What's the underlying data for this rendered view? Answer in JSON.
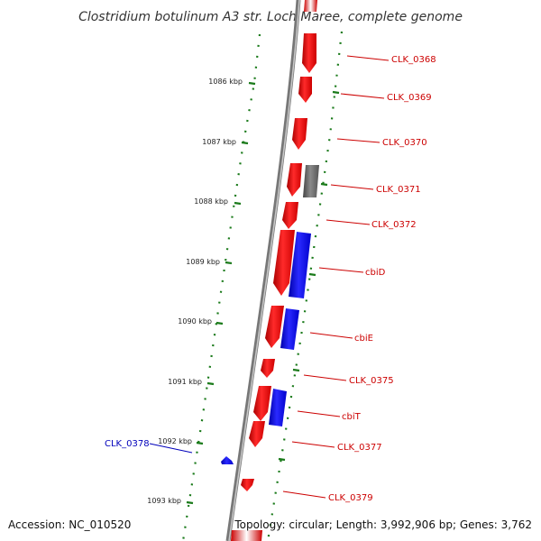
{
  "title": "Clostridium botulinum A3 str. Loch Maree, complete genome",
  "accession_text": "Accession: NC_010520",
  "topology_text": "Topology: circular; Length: 3,992,906 bp; Genes: 3,762",
  "colors": {
    "backbone": "#888888",
    "dotted_ring": "#1a7a1a",
    "forward_gene": "#ee1111",
    "reverse_gene": "#1111ee",
    "other_gene": "#666666",
    "label_red": "#cc0000",
    "label_blue": "#0000bb"
  },
  "kbp_ticks": [
    {
      "label": "1086 kbp"
    },
    {
      "label": "1087 kbp"
    },
    {
      "label": "1088 kbp"
    },
    {
      "label": "1089 kbp"
    },
    {
      "label": "1090 kbp"
    },
    {
      "label": "1091 kbp"
    },
    {
      "label": "1092 kbp"
    },
    {
      "label": "1093 kbp"
    }
  ],
  "genes": [
    {
      "name": "CLK_0368",
      "strand": "forward"
    },
    {
      "name": "CLK_0369",
      "strand": "forward"
    },
    {
      "name": "CLK_0370",
      "strand": "forward"
    },
    {
      "name": "CLK_0371",
      "strand": "forward"
    },
    {
      "name": "CLK_0372",
      "strand": "forward"
    },
    {
      "name": "cbiD",
      "strand": "reverse"
    },
    {
      "name": "cbiE",
      "strand": "reverse"
    },
    {
      "name": "CLK_0375",
      "strand": "forward"
    },
    {
      "name": "cbiT",
      "strand": "reverse"
    },
    {
      "name": "CLK_0377",
      "strand": "forward"
    },
    {
      "name": "CLK_0378",
      "strand": "reverse"
    },
    {
      "name": "CLK_0379",
      "strand": "forward"
    }
  ]
}
